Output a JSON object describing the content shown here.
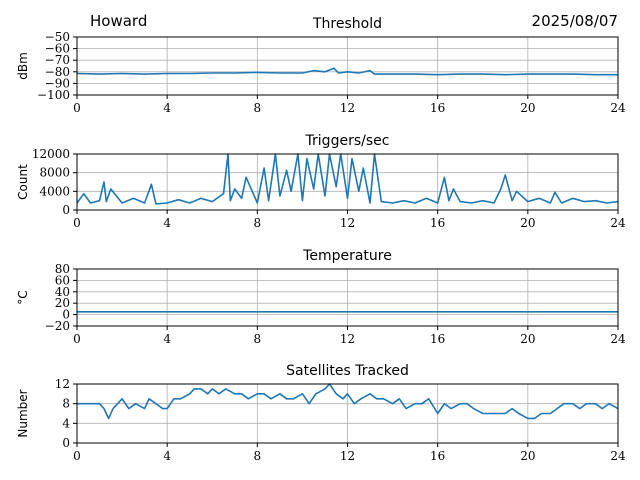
{
  "header": {
    "station": "Howard",
    "date": "2025/08/07"
  },
  "chart_data": [
    {
      "type": "line",
      "title": "Threshold",
      "ylabel": "dBm",
      "xlabel": "",
      "xlim": [
        0,
        24
      ],
      "ylim": [
        -100,
        -50
      ],
      "yticks": [
        -100,
        -90,
        -80,
        -70,
        -60,
        -50
      ],
      "xticks": [
        0,
        4,
        8,
        12,
        16,
        20,
        24
      ],
      "grid": true,
      "color": "#1f77b4",
      "series": [
        {
          "x": [
            0,
            1,
            2,
            3,
            4,
            5,
            6,
            7,
            8,
            9,
            10,
            10.5,
            11,
            11.4,
            11.6,
            12,
            12.5,
            13,
            13.2,
            14,
            15,
            16,
            17,
            18,
            19,
            20,
            21,
            22,
            23,
            24
          ],
          "values": [
            -81.5,
            -82,
            -81.5,
            -82,
            -81.5,
            -81.5,
            -81,
            -81,
            -80.5,
            -81,
            -81,
            -79,
            -80,
            -77,
            -81,
            -80,
            -81,
            -79,
            -82,
            -82,
            -82,
            -82.5,
            -82,
            -82,
            -82.5,
            -82,
            -82,
            -82,
            -82.5,
            -82.5
          ]
        }
      ]
    },
    {
      "type": "line",
      "title": "Triggers/sec",
      "ylabel": "Count",
      "xlabel": "",
      "xlim": [
        0,
        24
      ],
      "ylim": [
        0,
        12000
      ],
      "yticks": [
        0,
        4000,
        8000,
        12000
      ],
      "xticks": [
        0,
        4,
        8,
        12,
        16,
        20,
        24
      ],
      "grid": true,
      "color": "#1f77b4",
      "series": [
        {
          "x": [
            0,
            0.3,
            0.6,
            1,
            1.2,
            1.3,
            1.5,
            2,
            2.5,
            3,
            3.3,
            3.5,
            4,
            4.5,
            5,
            5.5,
            6,
            6.5,
            6.7,
            6.8,
            7,
            7.3,
            7.5,
            8,
            8.3,
            8.5,
            8.8,
            9,
            9.3,
            9.5,
            9.8,
            10,
            10.2,
            10.5,
            10.7,
            11,
            11.2,
            11.5,
            11.7,
            12,
            12.2,
            12.5,
            12.7,
            13,
            13.2,
            13.5,
            14,
            14.5,
            15,
            15.5,
            16,
            16.3,
            16.5,
            16.7,
            17,
            17.5,
            18,
            18.5,
            18.8,
            19,
            19.3,
            19.5,
            20,
            20.5,
            21,
            21.2,
            21.5,
            22,
            22.5,
            23,
            23.5,
            24
          ],
          "values": [
            1500,
            3500,
            1500,
            2000,
            6000,
            1800,
            4500,
            1500,
            2500,
            1500,
            5500,
            1300,
            1500,
            2200,
            1500,
            2500,
            1800,
            3500,
            12000,
            2000,
            4500,
            2500,
            7000,
            1500,
            9000,
            2000,
            12000,
            3000,
            8500,
            4000,
            12000,
            2000,
            11000,
            4500,
            12000,
            3000,
            12000,
            5000,
            12000,
            2500,
            11000,
            4000,
            9000,
            1500,
            12000,
            1800,
            1500,
            2000,
            1500,
            2500,
            1500,
            7000,
            2000,
            4500,
            1800,
            1500,
            2000,
            1500,
            4500,
            7500,
            2000,
            4000,
            1800,
            2500,
            1500,
            3800,
            1500,
            2500,
            1800,
            2000,
            1500,
            1800
          ]
        }
      ]
    },
    {
      "type": "line",
      "title": "Temperature",
      "ylabel": "°C",
      "xlabel": "",
      "xlim": [
        0,
        24
      ],
      "ylim": [
        -20,
        80
      ],
      "yticks": [
        -20,
        0,
        20,
        40,
        60,
        80
      ],
      "xticks": [
        0,
        4,
        8,
        12,
        16,
        20,
        24
      ],
      "grid": true,
      "color": "#1f77b4",
      "series": [
        {
          "x": [
            0,
            24
          ],
          "values": [
            5,
            5
          ]
        }
      ]
    },
    {
      "type": "line",
      "title": "Satellites Tracked",
      "ylabel": "Number",
      "xlabel": "",
      "xlim": [
        0,
        24
      ],
      "ylim": [
        0,
        12
      ],
      "yticks": [
        0,
        4,
        8,
        12
      ],
      "xticks": [
        0,
        4,
        8,
        12,
        16,
        20,
        24
      ],
      "grid": true,
      "color": "#1f77b4",
      "series": [
        {
          "x": [
            0,
            0.5,
            1,
            1.2,
            1.4,
            1.6,
            1.8,
            2,
            2.3,
            2.6,
            3,
            3.2,
            3.5,
            3.8,
            4,
            4.3,
            4.6,
            5,
            5.2,
            5.5,
            5.8,
            6,
            6.3,
            6.6,
            7,
            7.3,
            7.6,
            8,
            8.3,
            8.6,
            9,
            9.3,
            9.6,
            10,
            10.3,
            10.6,
            11,
            11.2,
            11.5,
            11.8,
            12,
            12.3,
            12.6,
            13,
            13.3,
            13.6,
            14,
            14.3,
            14.6,
            15,
            15.3,
            15.6,
            16,
            16.3,
            16.6,
            17,
            17.3,
            17.6,
            18,
            18.3,
            18.6,
            19,
            19.3,
            19.6,
            20,
            20.3,
            20.6,
            21,
            21.3,
            21.6,
            22,
            22.3,
            22.6,
            23,
            23.3,
            23.6,
            24
          ],
          "values": [
            8,
            8,
            8,
            7,
            5,
            7,
            8,
            9,
            7,
            8,
            7,
            9,
            8,
            7,
            7,
            9,
            9,
            10,
            11,
            11,
            10,
            11,
            10,
            11,
            10,
            10,
            9,
            10,
            10,
            9,
            10,
            9,
            9,
            10,
            8,
            10,
            11,
            12,
            10,
            9,
            10,
            8,
            9,
            10,
            9,
            9,
            8,
            9,
            7,
            8,
            8,
            9,
            6,
            8,
            7,
            8,
            8,
            7,
            6,
            6,
            6,
            6,
            7,
            6,
            5,
            5,
            6,
            6,
            7,
            8,
            8,
            7,
            8,
            8,
            7,
            8,
            7
          ]
        }
      ]
    }
  ]
}
